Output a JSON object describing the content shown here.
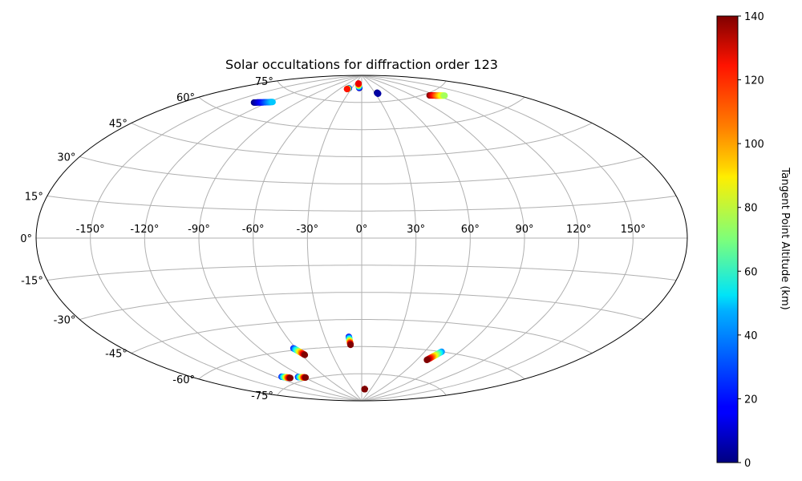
{
  "chart_data": {
    "type": "scatter",
    "projection": "aitoff",
    "title": "Solar occultations for diffraction order 123",
    "xlabel": "",
    "ylabel": "",
    "grid": true,
    "lon_ticks": [
      -150,
      -120,
      -90,
      -60,
      -30,
      0,
      30,
      60,
      90,
      120,
      150
    ],
    "lon_tick_labels": [
      "-150°",
      "-120°",
      "-90°",
      "-60°",
      "-30°",
      "0°",
      "30°",
      "60°",
      "90°",
      "120°",
      "150°"
    ],
    "lat_ticks": [
      75,
      60,
      45,
      30,
      15,
      0,
      -15,
      -30,
      -45,
      -60,
      -75
    ],
    "lat_tick_labels": [
      "75°",
      "60°",
      "45°",
      "30°",
      "15°",
      "0°",
      "-15°",
      "-30°",
      "-45°",
      "-60°",
      "-75°"
    ],
    "colorbar": {
      "label": "Tangent Point Altitude (km)",
      "min": 0,
      "max": 140,
      "ticks": [
        0,
        20,
        40,
        60,
        80,
        100,
        120,
        140
      ],
      "tick_labels": [
        "0",
        "20",
        "40",
        "60",
        "80",
        "100",
        "120",
        "140"
      ],
      "colormap": "jet"
    },
    "tracks": [
      {
        "start": [
          -132,
          66.5
        ],
        "end": [
          -117,
          69
        ],
        "alt_start": 0,
        "alt_end": 45
      },
      {
        "start": [
          -38,
          82.5
        ],
        "end": [
          -41,
          82
        ],
        "alt_start": 0,
        "alt_end": 120
      },
      {
        "start": [
          -7.5,
          83
        ],
        "end": [
          -15,
          85.5
        ],
        "alt_start": 0,
        "alt_end": 125
      },
      {
        "start": [
          35,
          80
        ],
        "end": [
          35.5,
          79.5
        ],
        "alt_start": 0,
        "alt_end": 5
      },
      {
        "start": [
          112,
          74
        ],
        "end": [
          127,
          72
        ],
        "alt_start": 140,
        "alt_end": 75
      },
      {
        "start": [
          -62,
          -59
        ],
        "end": [
          -57,
          -63
        ],
        "alt_start": 20,
        "alt_end": 140
      },
      {
        "start": [
          -10.5,
          -54.5
        ],
        "end": [
          -10,
          -59
        ],
        "alt_start": 15,
        "alt_end": 140
      },
      {
        "start": [
          75,
          -60
        ],
        "end": [
          70,
          -65
        ],
        "alt_start": 35,
        "alt_end": 140
      },
      {
        "start": [
          -114,
          -71
        ],
        "end": [
          -108,
          -72.5
        ],
        "alt_start": 20,
        "alt_end": 140
      },
      {
        "start": [
          -97,
          -73
        ],
        "end": [
          -89,
          -74
        ],
        "alt_start": 20,
        "alt_end": 140
      },
      {
        "start": [
          10,
          -83.5
        ],
        "end": [
          10,
          -83.5
        ],
        "alt_start": 140,
        "alt_end": 140
      }
    ]
  }
}
